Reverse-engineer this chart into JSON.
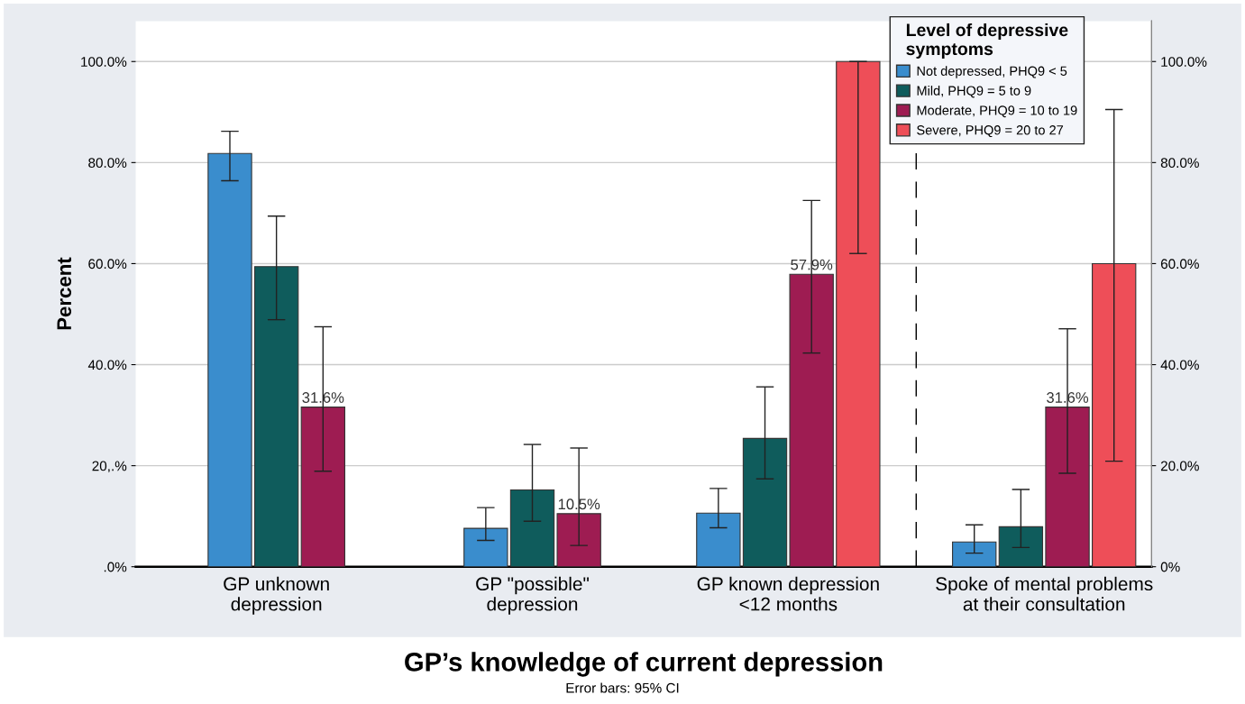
{
  "chart_data": {
    "type": "bar",
    "xlabel": "GP’s knowledge of current depression",
    "ylabel": "Percent",
    "categories": [
      "GP unknown\ndepression",
      "GP \"possible\"\ndepression",
      "GP known depression\n<12 months",
      "Spoke of mental problems\nat their consultation"
    ],
    "series": [
      {
        "name": "Not depressed, PHQ9 < 5",
        "color": "#3a8dcd",
        "values": [
          81.8,
          7.6,
          10.6,
          4.9
        ],
        "errors": [
          [
            76.4,
            86.2
          ],
          [
            5.2,
            11.7
          ],
          [
            7.7,
            15.5
          ],
          [
            2.7,
            8.3
          ]
        ],
        "value_labels": [
          null,
          null,
          null,
          null
        ]
      },
      {
        "name": "Mild, PHQ9 = 5 to 9",
        "color": "#0f5c5c",
        "values": [
          59.4,
          15.2,
          25.4,
          7.9
        ],
        "errors": [
          [
            48.9,
            69.4
          ],
          [
            9.0,
            24.2
          ],
          [
            17.4,
            35.6
          ],
          [
            3.8,
            15.3
          ]
        ],
        "value_labels": [
          null,
          null,
          null,
          null
        ]
      },
      {
        "name": "Moderate, PHQ9 = 10 to 19",
        "color": "#9e1c52",
        "values": [
          31.6,
          10.5,
          57.9,
          31.6
        ],
        "errors": [
          [
            18.9,
            47.5
          ],
          [
            4.2,
            23.5
          ],
          [
            42.3,
            72.5
          ],
          [
            18.5,
            47.1
          ]
        ],
        "value_labels": [
          "31.6%",
          "10.5%",
          "57.9%",
          "31.6%"
        ]
      },
      {
        "name": "Severe, PHQ9 = 20 to 27",
        "color": "#ee4e58",
        "values": [
          null,
          null,
          100,
          60
        ],
        "errors": [
          null,
          null,
          [
            62,
            100
          ],
          [
            20.9,
            90.5
          ]
        ],
        "value_labels": [
          null,
          null,
          null,
          null
        ]
      }
    ],
    "ylim": [
      0,
      108
    ],
    "yticks": [
      {
        "value": 0,
        "label": ".0%"
      },
      {
        "value": 20,
        "label": "20,.%"
      },
      {
        "value": 40,
        "label": "40.0%"
      },
      {
        "value": 60,
        "label": "60.0%"
      },
      {
        "value": 80,
        "label": "80.0%"
      },
      {
        "value": 100,
        "label": "100.0%"
      }
    ],
    "y2lim": [
      0,
      108
    ],
    "y2ticks": [
      {
        "value": 0,
        "label": "0%"
      },
      {
        "value": 20,
        "label": "20.0%"
      },
      {
        "value": 40,
        "label": "40.0%"
      },
      {
        "value": 60,
        "label": "60.0%"
      },
      {
        "value": 80,
        "label": "80.0%"
      },
      {
        "value": 100,
        "label": "100.0%"
      }
    ],
    "grid": "y",
    "legend": "top right",
    "legend_title": "Level of depressive\nsymptoms",
    "annotations": [
      "Error bars: 95% CI"
    ]
  }
}
